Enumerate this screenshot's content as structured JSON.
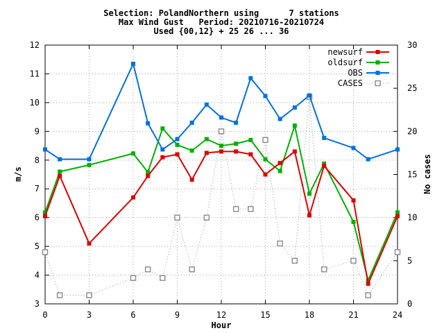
{
  "chart_data": {
    "type": "line",
    "title_lines": [
      "Selection: PolandNorthern using      7 stations",
      "Max Wind Gust   Period: 20210716-20210724",
      "Used {00,12} + 25 26 ... 36"
    ],
    "xlabel": "Hour",
    "ylabel": "m/s",
    "y2label": "No cases",
    "xlim": [
      0,
      24
    ],
    "ylim": [
      3,
      12
    ],
    "y2lim": [
      0,
      30
    ],
    "x_ticks": [
      0,
      3,
      6,
      9,
      12,
      15,
      18,
      21,
      24
    ],
    "y_ticks": [
      3,
      4,
      5,
      6,
      7,
      8,
      9,
      10,
      11,
      12
    ],
    "y2_ticks": [
      0,
      5,
      10,
      15,
      20,
      25,
      30
    ],
    "grid": true,
    "legend_position": "top-right",
    "series": [
      {
        "name": "newsurf",
        "axis": "y",
        "color": "#dd0000",
        "marker": "filled-square",
        "style": "solid",
        "x": [
          0,
          1,
          3,
          6,
          7,
          8,
          9,
          10,
          11,
          12,
          13,
          14,
          15,
          16,
          17,
          18,
          19,
          21,
          22,
          24
        ],
        "y": [
          6.05,
          7.45,
          5.1,
          6.7,
          7.45,
          8.1,
          8.2,
          7.32,
          8.25,
          8.3,
          8.3,
          8.2,
          7.5,
          7.9,
          8.3,
          6.08,
          7.8,
          6.6,
          3.7,
          6.05
        ]
      },
      {
        "name": "oldsurf",
        "axis": "y",
        "color": "#00b000",
        "marker": "filled-square",
        "style": "solid",
        "x": [
          0,
          1,
          3,
          6,
          7,
          8,
          9,
          10,
          11,
          12,
          13,
          14,
          15,
          16,
          17,
          18,
          19,
          21,
          22,
          24
        ],
        "y": [
          6.18,
          7.6,
          7.83,
          8.23,
          7.58,
          9.1,
          8.53,
          8.33,
          8.73,
          8.5,
          8.57,
          8.7,
          8.03,
          7.62,
          9.2,
          6.83,
          7.88,
          5.85,
          3.82,
          6.18
        ]
      },
      {
        "name": "OBS",
        "axis": "y",
        "color": "#0070e0",
        "marker": "filled-square",
        "style": "solid",
        "x": [
          0,
          1,
          3,
          6,
          7,
          8,
          9,
          10,
          11,
          12,
          13,
          14,
          15,
          16,
          17,
          18,
          19,
          21,
          22,
          24
        ],
        "y": [
          8.37,
          8.03,
          8.03,
          11.35,
          9.28,
          8.37,
          8.73,
          9.3,
          9.93,
          9.48,
          9.3,
          10.85,
          10.23,
          9.43,
          9.83,
          10.25,
          8.77,
          8.42,
          8.03,
          8.37
        ]
      },
      {
        "name": "CASES",
        "axis": "y2",
        "color": "#909090",
        "marker": "open-square",
        "style": "dotted",
        "x": [
          0,
          1,
          3,
          6,
          7,
          8,
          9,
          10,
          11,
          12,
          13,
          14,
          15,
          16,
          17,
          18,
          19,
          21,
          22,
          24
        ],
        "y": [
          6,
          1,
          1,
          3,
          4,
          3,
          10,
          4,
          10,
          20,
          11,
          11,
          19,
          7,
          5,
          24,
          4,
          5,
          1,
          6
        ]
      }
    ]
  }
}
